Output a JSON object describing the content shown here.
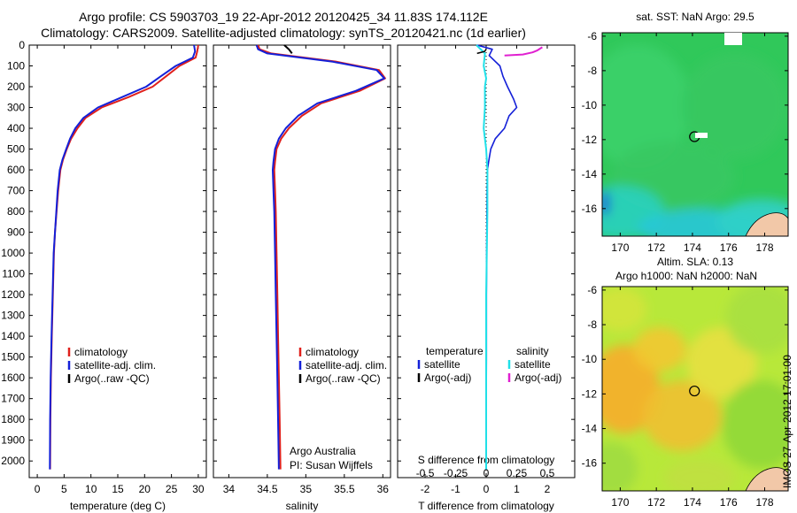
{
  "header": {
    "line1": "Argo profile: CS 5903703_19 22-Apr-2012 20120425_34 11.83S 174.112E",
    "line2": "Climatology: CARS2009. Satellite-adjusted climatology: synTS_20120421.nc (1d earlier)"
  },
  "stamp": "IMOS 27-Apr-2012 17:01:00",
  "colors": {
    "climatology": "#e0201c",
    "satellite": "#1420d8",
    "argo": "#000000",
    "sal_satellite": "#20e0e8",
    "sal_argo": "#e020d0"
  },
  "chart_data": [
    {
      "type": "line",
      "name": "temperature",
      "xlabel": "temperature (deg C)",
      "ylabel": "",
      "xlim": [
        -1.5,
        31.5
      ],
      "ylim": [
        2080,
        0
      ],
      "xticks": [
        "0",
        "5",
        "10",
        "15",
        "20",
        "25",
        "30"
      ],
      "yticks": [
        "0",
        "100",
        "200",
        "300",
        "400",
        "500",
        "600",
        "700",
        "800",
        "900",
        "1000",
        "1100",
        "1200",
        "1300",
        "1400",
        "1500",
        "1600",
        "1700",
        "1800",
        "1900",
        "2000"
      ],
      "legend": [
        "climatology",
        "satellite-adj. clim.",
        "Argo(..raw -QC)"
      ],
      "series": [
        {
          "name": "climatology",
          "x": [
            30,
            29.8,
            29.5,
            26.5,
            24,
            21.5,
            17,
            12,
            9,
            7.5,
            6.3,
            5.5,
            4.8,
            4.3,
            3.9,
            3.6,
            3.3,
            3.1,
            2.9,
            2.7,
            2.55,
            2.45,
            2.4
          ],
          "y": [
            0,
            30,
            60,
            100,
            150,
            200,
            250,
            300,
            350,
            400,
            450,
            500,
            550,
            600,
            700,
            800,
            900,
            1000,
            1200,
            1400,
            1600,
            1800,
            2040
          ]
        },
        {
          "name": "satellite-adj. clim.",
          "x": [
            29.2,
            29.4,
            29,
            25.8,
            23,
            20.3,
            15.8,
            11.3,
            8.6,
            7.1,
            6.1,
            5.4,
            4.7,
            4.2,
            3.8,
            3.55,
            3.3,
            3.05,
            2.85,
            2.65,
            2.5,
            2.4,
            2.35
          ],
          "y": [
            0,
            30,
            60,
            100,
            150,
            200,
            250,
            300,
            350,
            400,
            450,
            500,
            550,
            600,
            700,
            800,
            900,
            1000,
            1200,
            1400,
            1600,
            1800,
            2040
          ]
        }
      ]
    },
    {
      "type": "line",
      "name": "salinity",
      "xlabel": "salinity",
      "xlim": [
        33.8,
        36.1
      ],
      "ylim": [
        2080,
        0
      ],
      "xticks": [
        "34",
        "34.5",
        "35",
        "35.5",
        "36"
      ],
      "legend": [
        "climatology",
        "satellite-adj. clim.",
        "Argo(..raw -QC)"
      ],
      "annotation": [
        "Argo Australia",
        "PI: Susan Wijffels"
      ],
      "series": [
        {
          "name": "climatology",
          "x": [
            34.38,
            34.4,
            34.55,
            35.4,
            35.95,
            36.03,
            35.7,
            35.2,
            34.95,
            34.78,
            34.68,
            34.62,
            34.6,
            34.59,
            34.6,
            34.61,
            34.62,
            34.63,
            34.64,
            34.65,
            34.66,
            34.67
          ],
          "y": [
            0,
            20,
            40,
            80,
            120,
            160,
            220,
            280,
            340,
            400,
            450,
            500,
            560,
            600,
            700,
            800,
            1000,
            1200,
            1400,
            1600,
            1800,
            2040
          ]
        },
        {
          "name": "satellite-adj. clim.",
          "x": [
            34.36,
            34.38,
            34.5,
            35.35,
            35.92,
            36.02,
            35.65,
            35.15,
            34.9,
            34.74,
            34.65,
            34.6,
            34.58,
            34.57,
            34.58,
            34.59,
            34.6,
            34.61,
            34.62,
            34.63,
            34.64,
            34.65
          ],
          "y": [
            0,
            20,
            40,
            80,
            120,
            160,
            220,
            280,
            340,
            400,
            450,
            500,
            560,
            600,
            700,
            800,
            1000,
            1200,
            1400,
            1600,
            1800,
            2040
          ]
        },
        {
          "name": "Argo",
          "x": [
            34.72,
            34.75,
            34.78,
            34.8,
            34.82
          ],
          "y": [
            0,
            10,
            20,
            30,
            40
          ]
        }
      ]
    },
    {
      "type": "line",
      "name": "difference",
      "xlabel": "T difference from climatology",
      "top_label": "S difference from climatology",
      "xlim": [
        -2.9,
        2.9
      ],
      "ylim": [
        2080,
        0
      ],
      "xticks_bottom": [
        "-2",
        "-1",
        "0",
        "1",
        "2"
      ],
      "xticks_top": [
        "-0.5",
        "-0.25",
        "0",
        "0.25",
        "0.5"
      ],
      "legend_titles": [
        "temperature",
        "salinity"
      ],
      "legend": [
        "satellite",
        "Argo(-adj)",
        "satellite",
        "Argo(-adj)"
      ],
      "series": [
        {
          "name": "temperature satellite",
          "x": [
            -0.3,
            0.2,
            0.1,
            0.45,
            0.55,
            0.7,
            0.9,
            1.0,
            0.75,
            0.6,
            0.3,
            0.15,
            0.08,
            0.04,
            0.03,
            0.02,
            0.01,
            0.01,
            0.0,
            0.0
          ],
          "y": [
            0,
            20,
            50,
            100,
            150,
            200,
            260,
            300,
            340,
            400,
            450,
            500,
            560,
            600,
            700,
            900,
            1200,
            1500,
            1800,
            2040
          ]
        },
        {
          "name": "salinity satellite",
          "x": [
            -0.08,
            -0.01,
            -0.02,
            0.0,
            -0.01,
            -0.01,
            -0.02,
            0.0,
            0.01,
            0.01,
            0.0,
            0.0,
            0.0
          ],
          "y": [
            0,
            40,
            100,
            160,
            200,
            300,
            400,
            500,
            600,
            800,
            1200,
            1600,
            2040
          ]
        },
        {
          "name": "salinity Argo(-adj)",
          "x": [
            0.15,
            0.3,
            0.38,
            0.42,
            0.46
          ],
          "y": [
            50,
            45,
            35,
            25,
            10
          ]
        },
        {
          "name": "temperature Argo(-adj)",
          "x": [
            -0.3,
            -0.05,
            0.0
          ],
          "y": [
            40,
            30,
            20
          ]
        }
      ]
    },
    {
      "type": "heatmap",
      "name": "sat-sst-map",
      "title": "sat. SST: NaN Argo: 29.5",
      "xticks": [
        "170",
        "172",
        "174",
        "176",
        "178"
      ],
      "yticks": [
        "-6",
        "-8",
        "-10",
        "-12",
        "-14",
        "-16"
      ],
      "xlim": [
        169,
        179.3
      ],
      "ylim": [
        -5.8,
        -17.6
      ]
    },
    {
      "type": "heatmap",
      "name": "altim-sla-map",
      "title": [
        "Altim. SLA: 0.13",
        "Argo h1000: NaN h2000: NaN"
      ],
      "xticks": [
        "170",
        "172",
        "174",
        "176",
        "178"
      ],
      "yticks": [
        "-6",
        "-8",
        "-10",
        "-12",
        "-14",
        "-16"
      ],
      "xlim": [
        169,
        179.3
      ],
      "ylim": [
        -5.8,
        -17.6
      ]
    }
  ]
}
